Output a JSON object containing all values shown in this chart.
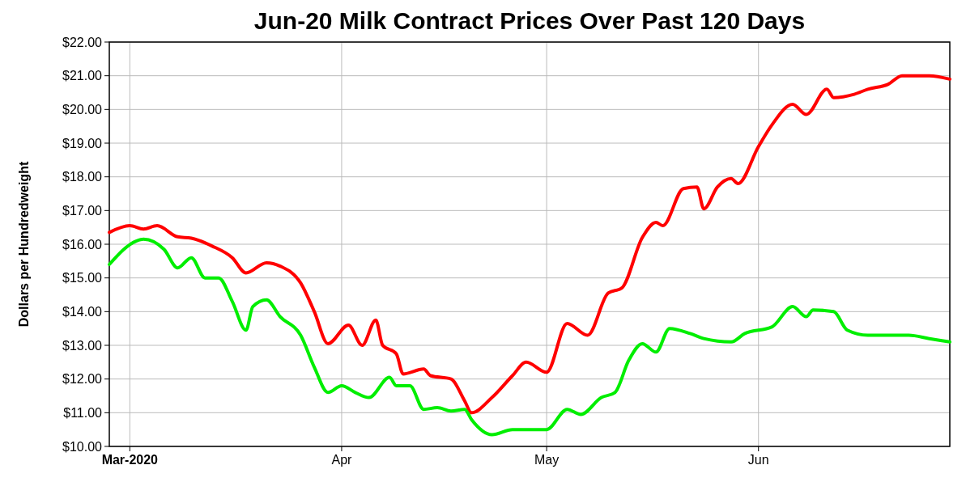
{
  "chart_data": {
    "type": "line",
    "title": "Jun-20 Milk Contract Prices Over Past 120 Days",
    "ylabel": "Dollars per Hundredweight",
    "xlim": [
      "2020-02-27",
      "2020-06-29"
    ],
    "xticks": [
      {
        "value": "2020-03-01",
        "label": "Mar-2020"
      },
      {
        "value": "2020-04-01",
        "label": "Apr"
      },
      {
        "value": "2020-05-01",
        "label": "May"
      },
      {
        "value": "2020-06-01",
        "label": "Jun"
      }
    ],
    "ylim": [
      10,
      22
    ],
    "yticks": [
      {
        "value": 10,
        "label": "$10.00"
      },
      {
        "value": 11,
        "label": "$11.00"
      },
      {
        "value": 12,
        "label": "$12.00"
      },
      {
        "value": 13,
        "label": "$13.00"
      },
      {
        "value": 14,
        "label": "$14.00"
      },
      {
        "value": 15,
        "label": "$15.00"
      },
      {
        "value": 16,
        "label": "$16.00"
      },
      {
        "value": 17,
        "label": "$17.00"
      },
      {
        "value": 18,
        "label": "$18.00"
      },
      {
        "value": 19,
        "label": "$19.00"
      },
      {
        "value": 20,
        "label": "$20.00"
      },
      {
        "value": 21,
        "label": "$21.00"
      },
      {
        "value": 22,
        "label": "$22.00"
      }
    ],
    "grid": true,
    "marker": "none",
    "line_style": "solid",
    "series": [
      {
        "color": "#ff0000",
        "x": [
          "2020-02-27",
          "2020-03-01",
          "2020-03-03",
          "2020-03-05",
          "2020-03-08",
          "2020-03-10",
          "2020-03-13",
          "2020-03-16",
          "2020-03-18",
          "2020-03-21",
          "2020-03-23",
          "2020-03-26",
          "2020-03-28",
          "2020-03-30",
          "2020-04-02",
          "2020-04-04",
          "2020-04-06",
          "2020-04-07",
          "2020-04-09",
          "2020-04-10",
          "2020-04-13",
          "2020-04-14",
          "2020-04-17",
          "2020-04-19",
          "2020-04-20",
          "2020-04-23",
          "2020-04-26",
          "2020-04-28",
          "2020-05-01",
          "2020-05-04",
          "2020-05-07",
          "2020-05-10",
          "2020-05-12",
          "2020-05-15",
          "2020-05-17",
          "2020-05-18",
          "2020-05-21",
          "2020-05-23",
          "2020-05-24",
          "2020-05-26",
          "2020-05-28",
          "2020-05-29",
          "2020-06-01",
          "2020-06-03",
          "2020-06-06",
          "2020-06-08",
          "2020-06-11",
          "2020-06-12",
          "2020-06-15",
          "2020-06-17",
          "2020-06-20",
          "2020-06-22",
          "2020-06-26",
          "2020-06-29"
        ],
        "values": [
          16.35,
          16.55,
          16.45,
          16.55,
          16.22,
          16.18,
          15.95,
          15.6,
          15.15,
          15.45,
          15.35,
          14.85,
          14.0,
          13.05,
          13.6,
          13.0,
          13.75,
          13.0,
          12.75,
          12.15,
          12.3,
          12.1,
          12.0,
          11.35,
          11.0,
          11.45,
          12.1,
          12.5,
          12.2,
          13.65,
          13.3,
          14.55,
          14.7,
          16.2,
          16.65,
          16.55,
          17.65,
          17.7,
          17.05,
          17.7,
          17.95,
          17.8,
          18.9,
          19.55,
          20.15,
          19.85,
          20.6,
          20.35,
          20.45,
          20.6,
          20.75,
          21.0,
          21.0,
          20.9
        ]
      },
      {
        "color": "#00ee00",
        "x": [
          "2020-02-27",
          "2020-03-02",
          "2020-03-03",
          "2020-03-06",
          "2020-03-08",
          "2020-03-10",
          "2020-03-12",
          "2020-03-14",
          "2020-03-16",
          "2020-03-18",
          "2020-03-19",
          "2020-03-21",
          "2020-03-23",
          "2020-03-26",
          "2020-03-28",
          "2020-03-30",
          "2020-04-01",
          "2020-04-03",
          "2020-04-05",
          "2020-04-08",
          "2020-04-09",
          "2020-04-11",
          "2020-04-13",
          "2020-04-15",
          "2020-04-17",
          "2020-04-19",
          "2020-04-20",
          "2020-04-23",
          "2020-04-26",
          "2020-05-01",
          "2020-05-04",
          "2020-05-06",
          "2020-05-09",
          "2020-05-11",
          "2020-05-13",
          "2020-05-15",
          "2020-05-17",
          "2020-05-19",
          "2020-05-22",
          "2020-05-24",
          "2020-05-28",
          "2020-05-30",
          "2020-06-03",
          "2020-06-06",
          "2020-06-08",
          "2020-06-09",
          "2020-06-12",
          "2020-06-14",
          "2020-06-17",
          "2020-06-23",
          "2020-06-26",
          "2020-06-29"
        ],
        "values": [
          15.4,
          16.1,
          16.15,
          15.85,
          15.3,
          15.6,
          15.0,
          15.0,
          14.3,
          13.45,
          14.15,
          14.35,
          13.85,
          13.3,
          12.35,
          11.6,
          11.8,
          11.6,
          11.45,
          12.05,
          11.8,
          11.8,
          11.1,
          11.15,
          11.05,
          11.1,
          10.8,
          10.35,
          10.5,
          10.5,
          11.1,
          10.95,
          11.45,
          11.6,
          12.55,
          13.05,
          12.8,
          13.5,
          13.35,
          13.2,
          13.1,
          13.35,
          13.55,
          14.15,
          13.85,
          14.05,
          14.0,
          13.45,
          13.3,
          13.3,
          13.2,
          13.1
        ]
      }
    ]
  }
}
